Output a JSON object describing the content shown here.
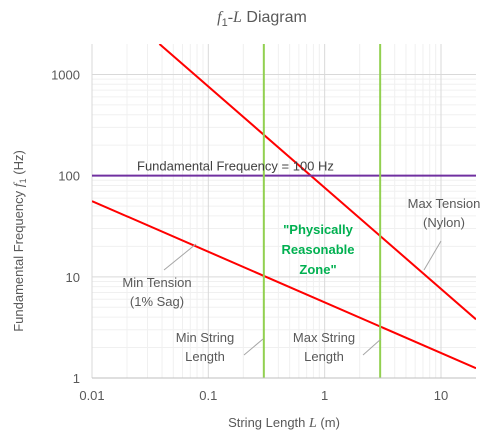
{
  "chart_data": {
    "type": "line",
    "title": {
      "symbol": "f",
      "subscript": "1",
      "separator": "-",
      "variable": "L",
      "suffix": "  Diagram"
    },
    "xlabel": {
      "prefix": "String Length ",
      "variable": "L",
      "suffix": " (m)"
    },
    "ylabel": {
      "prefix": "Fundamental Frequency ",
      "symbol": "f",
      "subscript": "1",
      "suffix": " (Hz)"
    },
    "x_scale": "log",
    "y_scale": "log",
    "xlim": [
      0.01,
      20
    ],
    "ylim": [
      1,
      2000
    ],
    "x_ticks": [
      {
        "value": 0.01,
        "label": "0.01"
      },
      {
        "value": 0.1,
        "label": "0.1"
      },
      {
        "value": 1,
        "label": "1"
      },
      {
        "value": 10,
        "label": "10"
      }
    ],
    "y_ticks": [
      {
        "value": 1,
        "label": "1"
      },
      {
        "value": 10,
        "label": "10"
      },
      {
        "value": 100,
        "label": "100"
      },
      {
        "value": 1000,
        "label": "1000"
      }
    ],
    "grid": true,
    "minor_grid": true,
    "colors": {
      "tension_lines": "#ff0000",
      "fundamental_line": "#7030a0",
      "length_lines": "#92d050",
      "zone_text": "#00b050",
      "grid_major": "#d9d9d9",
      "grid_minor": "#f0f0f0",
      "text": "#595959",
      "leader": "#a6a6a6"
    },
    "series": [
      {
        "name": "Max Tension (Nylon)",
        "kind": "diagonal",
        "color": "#ff0000",
        "points": [
          [
            0.038,
            2000
          ],
          [
            20,
            3.8
          ]
        ]
      },
      {
        "name": "Min Tension (1% Sag)",
        "kind": "diagonal",
        "color": "#ff0000",
        "points": [
          [
            0.01,
            56
          ],
          [
            20,
            1.25
          ]
        ]
      },
      {
        "name": "Fundamental Frequency = 100 Hz",
        "kind": "horizontal",
        "color": "#7030a0",
        "y": 100
      },
      {
        "name": "Min String Length",
        "kind": "vertical",
        "color": "#92d050",
        "x": 0.3
      },
      {
        "name": "Max String Length",
        "kind": "vertical",
        "color": "#92d050",
        "x": 3
      }
    ],
    "annotations": {
      "fundamental_label": "Fundamental Frequency = 100 Hz",
      "zone_label": [
        "\"Physically",
        "Reasonable",
        "Zone\""
      ],
      "max_tension_label": [
        "Max Tension",
        "(Nylon)"
      ],
      "min_tension_label": [
        "Min Tension",
        "(1% Sag)"
      ],
      "min_length_label": [
        "Min String",
        "Length"
      ],
      "max_length_label": [
        "Max String",
        "Length"
      ]
    }
  }
}
